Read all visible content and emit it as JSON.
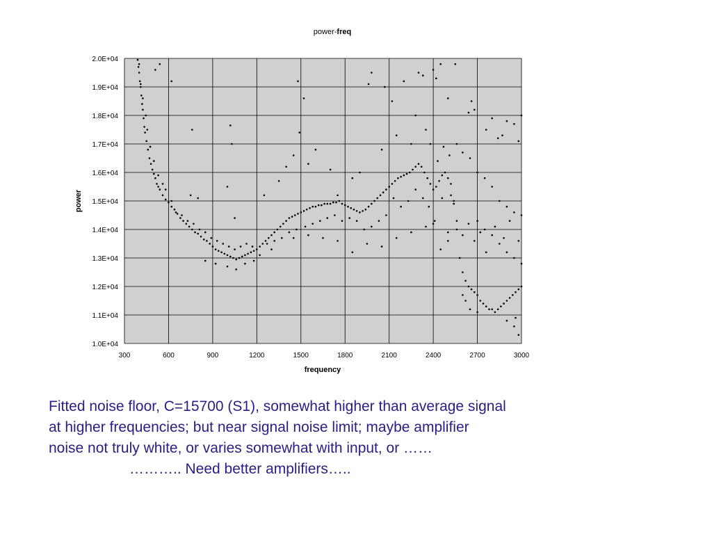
{
  "chart_data": {
    "type": "scatter",
    "title_main": "power-",
    "title_bold": "freq",
    "xlabel": "frequency",
    "ylabel": "power",
    "xlim": [
      300,
      3000
    ],
    "ylim": [
      10000,
      20000
    ],
    "x_ticks": [
      "300",
      "600",
      "900",
      "1200",
      "1500",
      "1800",
      "2100",
      "2400",
      "2700",
      "3000"
    ],
    "y_ticks": [
      "1.0E+04",
      "1.1E+04",
      "1.2E+04",
      "1.3E+04",
      "1.4E+04",
      "1.5E+04",
      "1.6E+04",
      "1.7E+04",
      "1.8E+04",
      "1.9E+04",
      "2.0E+04"
    ],
    "grid": true,
    "legend": "none",
    "plot_background": "#d0d0d0",
    "marker_color": "#000000",
    "series": [
      {
        "points": [
          [
            390,
            19950
          ],
          [
            395,
            19700
          ],
          [
            400,
            19500
          ],
          [
            405,
            19200
          ],
          [
            410,
            19000
          ],
          [
            415,
            18700
          ],
          [
            420,
            18400
          ],
          [
            425,
            18200
          ],
          [
            430,
            17900
          ],
          [
            435,
            17600
          ],
          [
            440,
            17400
          ],
          [
            450,
            17100
          ],
          [
            460,
            16800
          ],
          [
            470,
            16500
          ],
          [
            480,
            16300
          ],
          [
            490,
            16100
          ],
          [
            500,
            15950
          ],
          [
            510,
            15800
          ],
          [
            520,
            15600
          ],
          [
            530,
            15500
          ],
          [
            540,
            15400
          ],
          [
            560,
            15200
          ],
          [
            580,
            15050
          ],
          [
            600,
            14950
          ],
          [
            620,
            14800
          ],
          [
            640,
            14700
          ],
          [
            660,
            14550
          ],
          [
            680,
            14400
          ],
          [
            700,
            14300
          ],
          [
            720,
            14200
          ],
          [
            740,
            14100
          ],
          [
            760,
            14000
          ],
          [
            780,
            13900
          ],
          [
            800,
            13850
          ],
          [
            820,
            13750
          ],
          [
            840,
            13650
          ],
          [
            860,
            13600
          ],
          [
            880,
            13500
          ],
          [
            900,
            13400
          ],
          [
            920,
            13300
          ],
          [
            940,
            13250
          ],
          [
            960,
            13200
          ],
          [
            980,
            13150
          ],
          [
            1000,
            13100
          ],
          [
            1020,
            13050
          ],
          [
            1040,
            13000
          ],
          [
            1060,
            12950
          ],
          [
            1080,
            13000
          ],
          [
            1100,
            13050
          ],
          [
            1120,
            13100
          ],
          [
            1140,
            13150
          ],
          [
            1160,
            13200
          ],
          [
            1180,
            13250
          ],
          [
            1200,
            13300
          ],
          [
            1220,
            13400
          ],
          [
            1240,
            13500
          ],
          [
            1260,
            13600
          ],
          [
            1280,
            13700
          ],
          [
            1300,
            13800
          ],
          [
            1320,
            13900
          ],
          [
            1340,
            14000
          ],
          [
            1360,
            14100
          ],
          [
            1380,
            14200
          ],
          [
            1400,
            14300
          ],
          [
            1420,
            14400
          ],
          [
            1440,
            14450
          ],
          [
            1460,
            14500
          ],
          [
            1480,
            14550
          ],
          [
            1500,
            14600
          ],
          [
            1520,
            14650
          ],
          [
            1540,
            14700
          ],
          [
            1560,
            14750
          ],
          [
            1580,
            14800
          ],
          [
            1600,
            14800
          ],
          [
            1620,
            14850
          ],
          [
            1640,
            14850
          ],
          [
            1660,
            14900
          ],
          [
            1680,
            14900
          ],
          [
            1700,
            14900
          ],
          [
            1720,
            14950
          ],
          [
            1740,
            14950
          ],
          [
            1760,
            15000
          ],
          [
            1780,
            14900
          ],
          [
            1800,
            14850
          ],
          [
            1820,
            14800
          ],
          [
            1840,
            14750
          ],
          [
            1860,
            14700
          ],
          [
            1880,
            14650
          ],
          [
            1900,
            14600
          ],
          [
            1920,
            14650
          ],
          [
            1940,
            14700
          ],
          [
            1960,
            14800
          ],
          [
            1980,
            14900
          ],
          [
            2000,
            15000
          ],
          [
            2020,
            15100
          ],
          [
            2040,
            15200
          ],
          [
            2060,
            15300
          ],
          [
            2080,
            15400
          ],
          [
            2100,
            15500
          ],
          [
            2120,
            15600
          ],
          [
            2140,
            15700
          ],
          [
            2160,
            15800
          ],
          [
            2180,
            15850
          ],
          [
            2200,
            15900
          ],
          [
            2220,
            15950
          ],
          [
            2240,
            16000
          ],
          [
            2260,
            16100
          ],
          [
            2280,
            16200
          ],
          [
            2300,
            16300
          ],
          [
            2320,
            16200
          ],
          [
            2340,
            16000
          ],
          [
            2360,
            15800
          ],
          [
            2380,
            15600
          ],
          [
            2400,
            15400
          ],
          [
            2420,
            15500
          ],
          [
            2440,
            15700
          ],
          [
            2460,
            15900
          ],
          [
            2480,
            16000
          ],
          [
            2500,
            15800
          ],
          [
            2520,
            15600
          ],
          [
            2540,
            15000
          ],
          [
            2560,
            14000
          ],
          [
            2580,
            13000
          ],
          [
            2600,
            12500
          ],
          [
            2620,
            12200
          ],
          [
            2640,
            12000
          ],
          [
            2660,
            11900
          ],
          [
            2680,
            11800
          ],
          [
            2700,
            11700
          ],
          [
            2720,
            11500
          ],
          [
            2740,
            11400
          ],
          [
            2760,
            11300
          ],
          [
            2780,
            11200
          ],
          [
            2800,
            11200
          ],
          [
            2820,
            11100
          ],
          [
            2840,
            11200
          ],
          [
            2860,
            11300
          ],
          [
            2880,
            11400
          ],
          [
            2900,
            11500
          ],
          [
            2920,
            11600
          ],
          [
            2940,
            11700
          ],
          [
            2960,
            11800
          ],
          [
            2980,
            11900
          ],
          [
            3000,
            12000
          ],
          [
            540,
            19800
          ],
          [
            510,
            19600
          ],
          [
            620,
            19200
          ],
          [
            760,
            17500
          ],
          [
            1020,
            17650
          ],
          [
            1030,
            17000
          ],
          [
            1480,
            19200
          ],
          [
            1490,
            17400
          ],
          [
            1520,
            18600
          ],
          [
            1600,
            16800
          ],
          [
            1960,
            19100
          ],
          [
            1980,
            19500
          ],
          [
            2070,
            19000
          ],
          [
            2120,
            18500
          ],
          [
            2200,
            19200
          ],
          [
            2280,
            18000
          ],
          [
            2300,
            19500
          ],
          [
            2330,
            19400
          ],
          [
            2400,
            19600
          ],
          [
            2420,
            19300
          ],
          [
            2450,
            19800
          ],
          [
            2500,
            18600
          ],
          [
            2550,
            19800
          ],
          [
            2640,
            18100
          ],
          [
            2660,
            18500
          ],
          [
            2680,
            18200
          ],
          [
            2760,
            17500
          ],
          [
            2800,
            17900
          ],
          [
            2840,
            17200
          ],
          [
            2870,
            17300
          ],
          [
            2900,
            17800
          ],
          [
            2950,
            17700
          ],
          [
            2980,
            17100
          ],
          [
            3000,
            18000
          ],
          [
            750,
            15200
          ],
          [
            800,
            15100
          ],
          [
            1000,
            15500
          ],
          [
            1050,
            14400
          ],
          [
            1250,
            15200
          ],
          [
            1350,
            15700
          ],
          [
            1400,
            16200
          ],
          [
            1450,
            16600
          ],
          [
            1550,
            16300
          ],
          [
            1700,
            16100
          ],
          [
            1750,
            15200
          ],
          [
            1850,
            15800
          ],
          [
            1900,
            16000
          ],
          [
            2050,
            16800
          ],
          [
            2150,
            17300
          ],
          [
            2250,
            17000
          ],
          [
            2350,
            17500
          ],
          [
            2380,
            17000
          ],
          [
            2430,
            16400
          ],
          [
            2470,
            16900
          ],
          [
            2510,
            16600
          ],
          [
            2560,
            17000
          ],
          [
            2600,
            16700
          ],
          [
            2650,
            16500
          ],
          [
            2700,
            16000
          ],
          [
            2750,
            15800
          ],
          [
            2800,
            15500
          ],
          [
            2850,
            15000
          ],
          [
            2900,
            14800
          ],
          [
            2950,
            14600
          ],
          [
            3000,
            14500
          ],
          [
            2700,
            14300
          ],
          [
            2750,
            14000
          ],
          [
            2800,
            13800
          ],
          [
            2850,
            13500
          ],
          [
            2900,
            13200
          ],
          [
            2950,
            13000
          ],
          [
            3000,
            12800
          ],
          [
            2600,
            11700
          ],
          [
            2620,
            11500
          ],
          [
            2650,
            11200
          ],
          [
            2700,
            11100
          ],
          [
            2900,
            10800
          ],
          [
            2950,
            10600
          ],
          [
            2980,
            10300
          ],
          [
            2960,
            10900
          ],
          [
            850,
            12900
          ],
          [
            920,
            12800
          ],
          [
            1000,
            12700
          ],
          [
            1060,
            12600
          ],
          [
            1120,
            12800
          ],
          [
            1180,
            12900
          ],
          [
            1300,
            13300
          ],
          [
            1450,
            13700
          ],
          [
            1550,
            13800
          ],
          [
            1650,
            13700
          ],
          [
            1750,
            13600
          ],
          [
            1850,
            13200
          ],
          [
            1950,
            13500
          ],
          [
            2050,
            13400
          ],
          [
            2150,
            13700
          ],
          [
            2250,
            13900
          ],
          [
            2350,
            14100
          ],
          [
            2400,
            14200
          ],
          [
            2450,
            13300
          ],
          [
            2500,
            13600
          ],
          [
            2500,
            13900
          ],
          [
            2560,
            14300
          ],
          [
            2600,
            13800
          ],
          [
            2640,
            14200
          ],
          [
            2680,
            13600
          ],
          [
            2720,
            13900
          ],
          [
            2760,
            13200
          ],
          [
            2820,
            14100
          ],
          [
            2880,
            13700
          ],
          [
            2920,
            14300
          ],
          [
            2980,
            13600
          ],
          [
            2540,
            14900
          ],
          [
            2520,
            15200
          ],
          [
            2460,
            15100
          ],
          [
            2410,
            14300
          ],
          [
            2370,
            14800
          ],
          [
            2330,
            15100
          ],
          [
            2280,
            15400
          ],
          [
            2230,
            15000
          ],
          [
            2180,
            14800
          ],
          [
            2130,
            15100
          ],
          [
            2080,
            14500
          ],
          [
            2030,
            14300
          ],
          [
            1980,
            14100
          ],
          [
            1930,
            14000
          ],
          [
            1880,
            14300
          ],
          [
            1830,
            14400
          ],
          [
            1780,
            14300
          ],
          [
            1730,
            14500
          ],
          [
            1680,
            14400
          ],
          [
            1630,
            14300
          ],
          [
            1580,
            14200
          ],
          [
            1530,
            14100
          ],
          [
            1470,
            14000
          ],
          [
            1420,
            13900
          ],
          [
            1370,
            13700
          ],
          [
            1320,
            13600
          ],
          [
            1270,
            13500
          ],
          [
            1220,
            13100
          ],
          [
            1170,
            13400
          ],
          [
            1130,
            13500
          ],
          [
            1090,
            13400
          ],
          [
            1050,
            13300
          ],
          [
            1010,
            13400
          ],
          [
            970,
            13500
          ],
          [
            930,
            13600
          ],
          [
            890,
            13700
          ],
          [
            850,
            13900
          ],
          [
            810,
            14000
          ],
          [
            770,
            14200
          ],
          [
            730,
            14300
          ],
          [
            690,
            14500
          ],
          [
            650,
            14600
          ],
          [
            620,
            15000
          ],
          [
            580,
            15400
          ],
          [
            560,
            15600
          ],
          [
            530,
            15900
          ],
          [
            500,
            16400
          ],
          [
            475,
            16900
          ],
          [
            455,
            17500
          ],
          [
            445,
            18000
          ],
          [
            425,
            18600
          ],
          [
            410,
            19100
          ],
          [
            400,
            19800
          ]
        ]
      }
    ]
  },
  "caption": {
    "line1": "Fitted noise floor, C=15700 (S1), somewhat higher than average signal",
    "line2": "at higher frequencies; but near signal noise limit; maybe amplifier",
    "line3": "noise not truly white, or varies somewhat with input, or ……",
    "line4": "……….. Need better amplifiers….."
  }
}
